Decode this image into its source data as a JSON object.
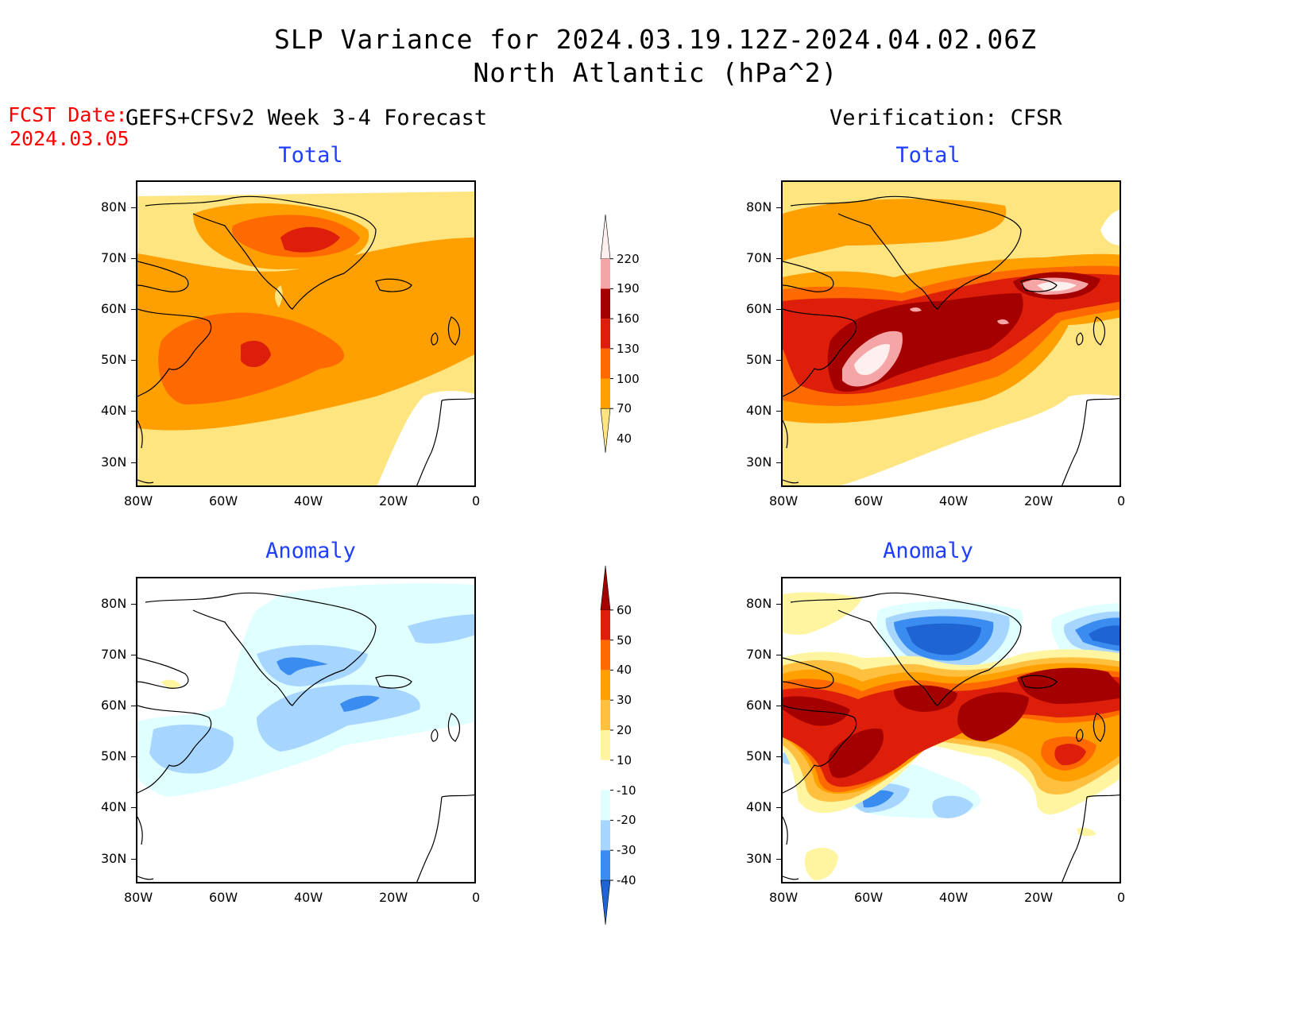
{
  "header": {
    "title_line1": "SLP Variance for 2024.03.19.12Z-2024.04.02.06Z",
    "title_line2": "North Atlantic (hPa^2)",
    "fcst_label": "FCST Date:",
    "fcst_date": "2024.03.05",
    "left_heading": "GEFS+CFSv2 Week 3-4 Forecast",
    "right_heading": "Verification: CFSR"
  },
  "panels": {
    "fcst_total": {
      "title": "Total"
    },
    "fcst_anom": {
      "title": "Anomaly"
    },
    "ver_total": {
      "title": "Total"
    },
    "ver_anom": {
      "title": "Anomaly"
    }
  },
  "axes": {
    "lat_labels": [
      "80N",
      "70N",
      "60N",
      "50N",
      "40N",
      "30N"
    ],
    "lon_labels": [
      "80W",
      "60W",
      "40W",
      "20W",
      "0"
    ]
  },
  "total_colorbar": {
    "levels": [
      "220",
      "190",
      "160",
      "130",
      "100",
      "70",
      "40"
    ],
    "colors": [
      "#fff0f0",
      "#f5a5a5",
      "#a50000",
      "#dc1e0a",
      "#ff6a00",
      "#ffa000",
      "#ffe580"
    ]
  },
  "anom_colorbar": {
    "levels": [
      "60",
      "50",
      "40",
      "30",
      "20",
      "10",
      "-10",
      "-20",
      "-30",
      "-40"
    ],
    "colors": [
      "#a50000",
      "#dc1e0a",
      "#ff6a00",
      "#ffa000",
      "#ffc040",
      "#fff5a0",
      "#ffffff",
      "#e0ffff",
      "#a6d5ff",
      "#3a8cf0",
      "#1e64d2"
    ]
  }
}
